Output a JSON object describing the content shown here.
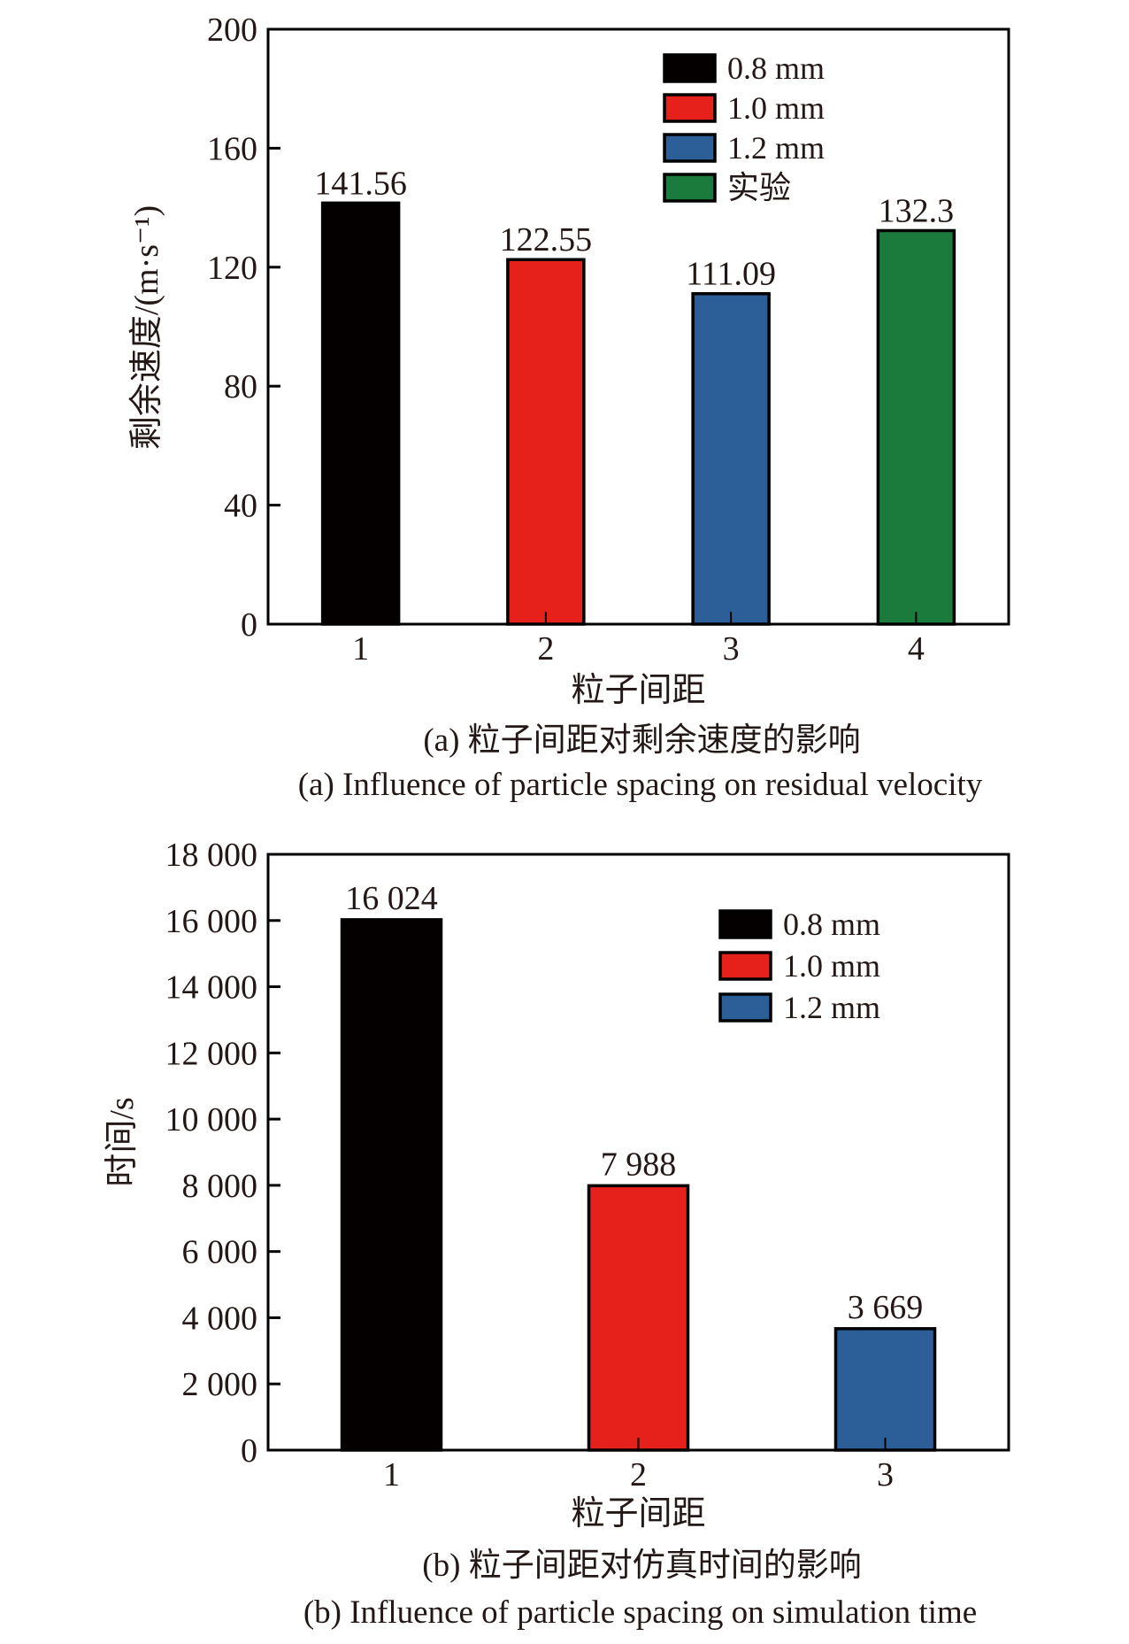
{
  "chart_data": [
    {
      "id": "a",
      "type": "bar",
      "title": "",
      "xlabel": "粒子间距",
      "ylabel": "剩余速度/(m·s⁻¹)",
      "categories": [
        "1",
        "2",
        "3",
        "4"
      ],
      "values": [
        141.56,
        122.55,
        111.09,
        132.3
      ],
      "value_labels": [
        "141.56",
        "122.55",
        "111.09",
        "132.3"
      ],
      "bar_series": [
        "0.8 mm",
        "1.0 mm",
        "1.2 mm",
        "实验"
      ],
      "ylim": [
        0,
        200
      ],
      "yticks": [
        0,
        40,
        80,
        120,
        160,
        200
      ],
      "ytick_labels": [
        "0",
        "40",
        "80",
        "120",
        "160",
        "200"
      ],
      "grid": false,
      "legend": {
        "placement": "top-right",
        "entries": [
          {
            "label": "0.8 mm",
            "color": "#040000"
          },
          {
            "label": "1.0 mm",
            "color": "#e6211c"
          },
          {
            "label": "1.2 mm",
            "color": "#2c5f97"
          },
          {
            "label": "实验",
            "color": "#1b7b3d"
          }
        ]
      },
      "caption_cn": "(a) 粒子间距对剩余速度的影响",
      "caption_en": "(a) Influence of particle spacing on residual velocity"
    },
    {
      "id": "b",
      "type": "bar",
      "title": "",
      "xlabel": "粒子间距",
      "ylabel": "时间/s",
      "categories": [
        "1",
        "2",
        "3"
      ],
      "values": [
        16024,
        7988,
        3669
      ],
      "value_labels": [
        "16 024",
        "7 988",
        "3 669"
      ],
      "bar_series": [
        "0.8 mm",
        "1.0 mm",
        "1.2 mm"
      ],
      "ylim": [
        0,
        18000
      ],
      "yticks": [
        0,
        2000,
        4000,
        6000,
        8000,
        10000,
        12000,
        14000,
        16000,
        18000
      ],
      "ytick_labels": [
        "0",
        "2 000",
        "4 000",
        "6 000",
        "8 000",
        "10 000",
        "12 000",
        "14 000",
        "16 000",
        "18 000"
      ],
      "grid": false,
      "legend": {
        "placement": "top-right",
        "entries": [
          {
            "label": "0.8 mm",
            "color": "#040000"
          },
          {
            "label": "1.0 mm",
            "color": "#e6211c"
          },
          {
            "label": "1.2 mm",
            "color": "#2c5f97"
          }
        ]
      },
      "caption_cn": "(b) 粒子间距对仿真时间的影响",
      "caption_en": "(b) Influence of particle spacing on simulation time"
    }
  ]
}
